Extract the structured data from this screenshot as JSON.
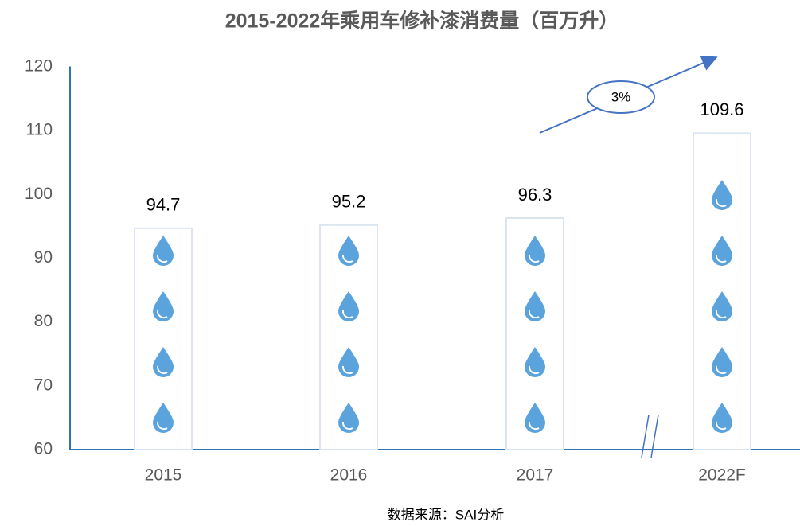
{
  "chart_data": {
    "type": "bar",
    "title": "2015-2022年乘用车修补漆消费量（百万升）",
    "categories": [
      "2015",
      "2016",
      "2017",
      "2022F"
    ],
    "values": [
      94.7,
      95.2,
      96.3,
      109.6
    ],
    "color": "#5ba3dc",
    "ylim": [
      60,
      120
    ],
    "yticks": [
      60,
      70,
      80,
      90,
      100,
      110,
      120
    ],
    "grid": false,
    "annotation": "3%",
    "source": "数据来源：SAI分析"
  }
}
